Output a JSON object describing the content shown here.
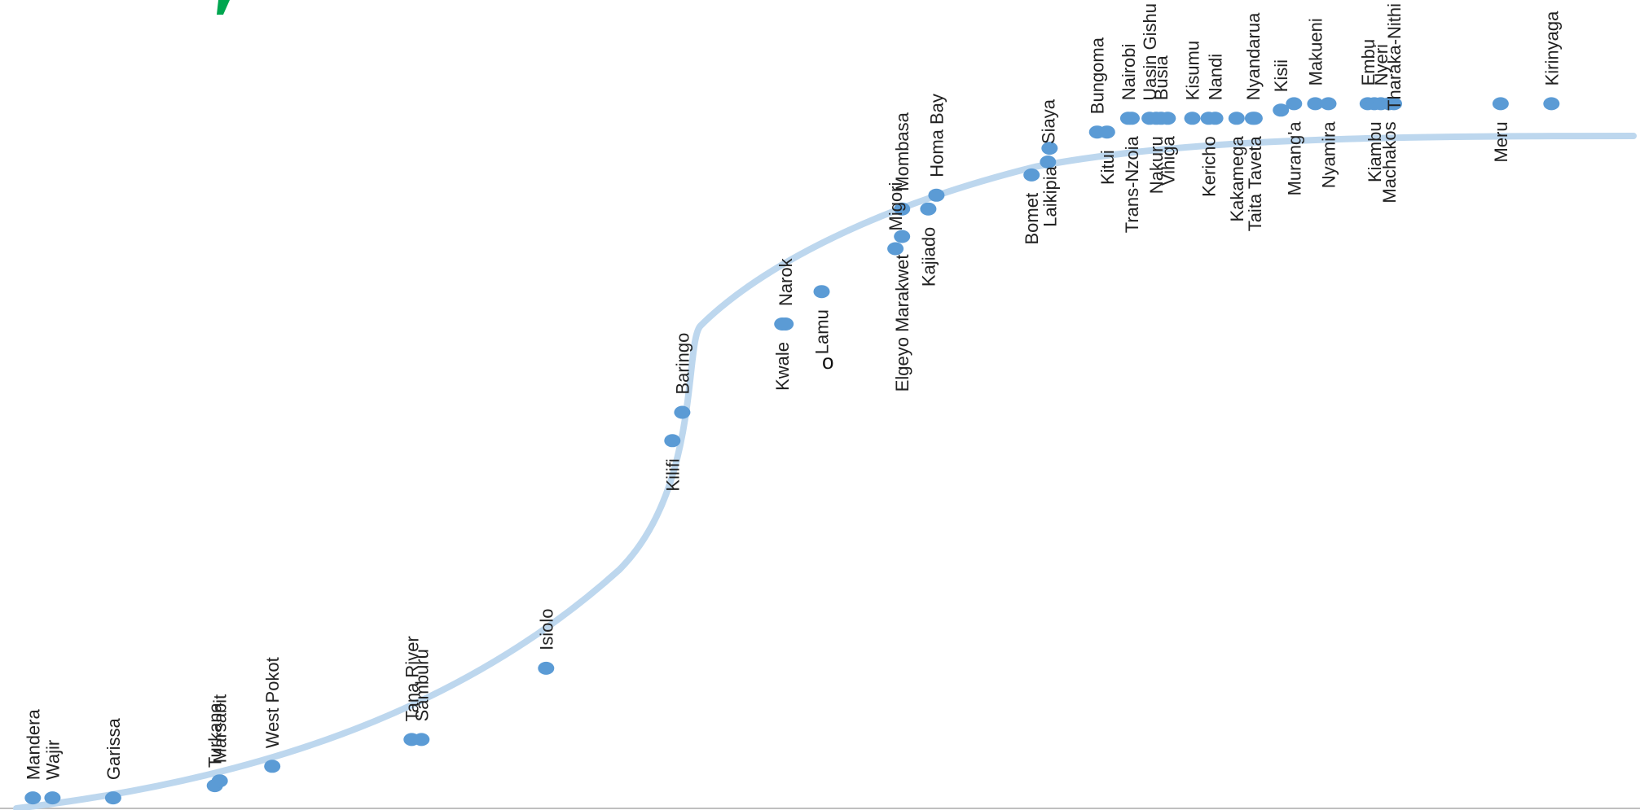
{
  "colors": {
    "curve": "#bdd7ee",
    "point": "#5b9bd5",
    "axis": "#bfbfbf",
    "label": "#222222",
    "fragment": "#00a650"
  },
  "annotation": "o",
  "chart_data": {
    "type": "scatter",
    "title": "",
    "xlabel": "",
    "ylabel": "",
    "grid": false,
    "legend": "none",
    "xlim": [
      0,
      100
    ],
    "ylim": [
      0,
      100
    ],
    "curve": "s-shaped (logistic) trend line",
    "points": [
      {
        "name": "Mandera",
        "x": 2.0,
        "y": 1.5
      },
      {
        "name": "Wajir",
        "x": 3.2,
        "y": 1.5
      },
      {
        "name": "Garissa",
        "x": 6.9,
        "y": 1.5
      },
      {
        "name": "Turkana",
        "x": 13.1,
        "y": 3.0
      },
      {
        "name": "Marsabit",
        "x": 13.4,
        "y": 3.6
      },
      {
        "name": "West Pokot",
        "x": 16.6,
        "y": 5.4
      },
      {
        "name": "Tana River",
        "x": 25.1,
        "y": 8.7
      },
      {
        "name": "Samburu",
        "x": 25.7,
        "y": 8.7
      },
      {
        "name": "Isiolo",
        "x": 33.3,
        "y": 17.5
      },
      {
        "name": "Kilifi",
        "x": 41.0,
        "y": 45.6
      },
      {
        "name": "Baringo",
        "x": 41.6,
        "y": 49.1
      },
      {
        "name": "Kwale",
        "x": 47.7,
        "y": 60.0
      },
      {
        "name": "Narok",
        "x": 47.9,
        "y": 60.0
      },
      {
        "name": "Lamu",
        "x": 50.1,
        "y": 64.0
      },
      {
        "name": "Migori",
        "x": 54.6,
        "y": 69.3
      },
      {
        "name": "Elgeyo Marakwet",
        "x": 55.0,
        "y": 70.8
      },
      {
        "name": "Mombasa",
        "x": 55.0,
        "y": 74.2
      },
      {
        "name": "Kajiado",
        "x": 56.6,
        "y": 74.2
      },
      {
        "name": "Homa Bay",
        "x": 57.1,
        "y": 75.9
      },
      {
        "name": "Bomet",
        "x": 62.9,
        "y": 78.4
      },
      {
        "name": "Siaya",
        "x": 63.9,
        "y": 80.0
      },
      {
        "name": "Laikipia",
        "x": 64.0,
        "y": 81.7
      },
      {
        "name": "Bungoma",
        "x": 66.9,
        "y": 83.7
      },
      {
        "name": "Kitui",
        "x": 67.5,
        "y": 83.7
      },
      {
        "name": "Nairobi",
        "x": 68.8,
        "y": 85.4
      },
      {
        "name": "Trans-Nzoia",
        "x": 69.0,
        "y": 85.4
      },
      {
        "name": "Uasin Gishu",
        "x": 70.1,
        "y": 85.4
      },
      {
        "name": "Nakuru",
        "x": 70.5,
        "y": 85.4
      },
      {
        "name": "Busia",
        "x": 70.8,
        "y": 85.4
      },
      {
        "name": "Vihiga",
        "x": 71.2,
        "y": 85.4
      },
      {
        "name": "Kisumu",
        "x": 72.7,
        "y": 85.4
      },
      {
        "name": "Kericho",
        "x": 73.7,
        "y": 85.4
      },
      {
        "name": "Nandi",
        "x": 74.1,
        "y": 85.4
      },
      {
        "name": "Kakamega",
        "x": 75.4,
        "y": 85.4
      },
      {
        "name": "Nyandarua",
        "x": 76.4,
        "y": 85.4
      },
      {
        "name": "Taita Taveta",
        "x": 76.5,
        "y": 85.4
      },
      {
        "name": "Kisii",
        "x": 78.1,
        "y": 86.4
      },
      {
        "name": "Murang'a",
        "x": 78.9,
        "y": 87.2
      },
      {
        "name": "Makueni",
        "x": 80.2,
        "y": 87.2
      },
      {
        "name": "Nyamira",
        "x": 81.0,
        "y": 87.2
      },
      {
        "name": "Embu",
        "x": 83.4,
        "y": 87.2
      },
      {
        "name": "Kiambu",
        "x": 83.8,
        "y": 87.2
      },
      {
        "name": "Nyeri",
        "x": 84.2,
        "y": 87.2
      },
      {
        "name": "Machakos",
        "x": 84.7,
        "y": 87.2
      },
      {
        "name": "Tharaka-Nithi",
        "x": 85.0,
        "y": 87.2
      },
      {
        "name": "Meru",
        "x": 91.5,
        "y": 87.2
      },
      {
        "name": "Kirinyaga",
        "x": 94.6,
        "y": 87.2
      }
    ]
  }
}
